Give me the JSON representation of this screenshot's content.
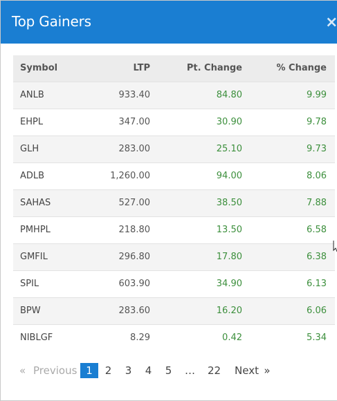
{
  "modal": {
    "title": "Top Gainers",
    "close_glyph": "×"
  },
  "table": {
    "headers": [
      "Symbol",
      "LTP",
      "Pt. Change",
      "% Change"
    ],
    "rows": [
      {
        "symbol": "ANLB",
        "ltp": "933.40",
        "pt_change": "84.80",
        "pct_change": "9.99"
      },
      {
        "symbol": "EHPL",
        "ltp": "347.00",
        "pt_change": "30.90",
        "pct_change": "9.78"
      },
      {
        "symbol": "GLH",
        "ltp": "283.00",
        "pt_change": "25.10",
        "pct_change": "9.73"
      },
      {
        "symbol": "ADLB",
        "ltp": "1,260.00",
        "pt_change": "94.00",
        "pct_change": "8.06"
      },
      {
        "symbol": "SAHAS",
        "ltp": "527.00",
        "pt_change": "38.50",
        "pct_change": "7.88"
      },
      {
        "symbol": "PMHPL",
        "ltp": "218.80",
        "pt_change": "13.50",
        "pct_change": "6.58"
      },
      {
        "symbol": "GMFIL",
        "ltp": "296.80",
        "pt_change": "17.80",
        "pct_change": "6.38"
      },
      {
        "symbol": "SPIL",
        "ltp": "603.90",
        "pt_change": "34.90",
        "pct_change": "6.13"
      },
      {
        "symbol": "BPW",
        "ltp": "283.60",
        "pt_change": "16.20",
        "pct_change": "6.06"
      },
      {
        "symbol": "NIBLGF",
        "ltp": "8.29",
        "pt_change": "0.42",
        "pct_change": "5.34"
      }
    ]
  },
  "pagination": {
    "prev_arrow": "«",
    "prev_label": "Previous",
    "pages": [
      "1",
      "2",
      "3",
      "4",
      "5",
      "…",
      "22"
    ],
    "current_page": "1",
    "next_label": "Next",
    "next_arrow": "»"
  },
  "colors": {
    "header_bg": "#1a7ed2",
    "positive": "#3c8f3c",
    "current_page_bg": "#1a7ed2"
  }
}
